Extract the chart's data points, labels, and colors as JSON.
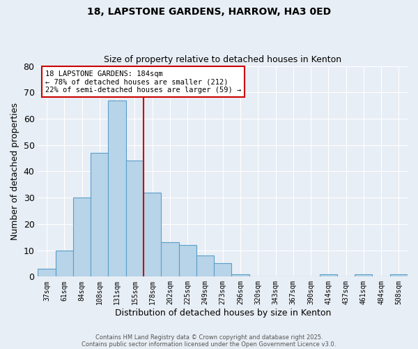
{
  "title": "18, LAPSTONE GARDENS, HARROW, HA3 0ED",
  "subtitle": "Size of property relative to detached houses in Kenton",
  "xlabel": "Distribution of detached houses by size in Kenton",
  "ylabel": "Number of detached properties",
  "bin_labels": [
    "37sqm",
    "61sqm",
    "84sqm",
    "108sqm",
    "131sqm",
    "155sqm",
    "178sqm",
    "202sqm",
    "225sqm",
    "249sqm",
    "273sqm",
    "296sqm",
    "320sqm",
    "343sqm",
    "367sqm",
    "390sqm",
    "414sqm",
    "437sqm",
    "461sqm",
    "484sqm",
    "508sqm"
  ],
  "bar_values": [
    3,
    10,
    30,
    47,
    67,
    44,
    32,
    13,
    12,
    8,
    5,
    1,
    0,
    0,
    0,
    0,
    1,
    0,
    1,
    0,
    1
  ],
  "bar_color": "#b8d4e8",
  "bar_edge_color": "#5a9ec9",
  "vline_x": 6,
  "vline_color": "#cc0000",
  "ylim": [
    0,
    80
  ],
  "yticks": [
    0,
    10,
    20,
    30,
    40,
    50,
    60,
    70,
    80
  ],
  "annotation_title": "18 LAPSTONE GARDENS: 184sqm",
  "annotation_line1": "← 78% of detached houses are smaller (212)",
  "annotation_line2": "22% of semi-detached houses are larger (59) →",
  "annotation_box_color": "#ffffff",
  "annotation_box_edge": "#cc0000",
  "bg_color": "#e8eef5",
  "grid_color": "#ffffff",
  "footer1": "Contains HM Land Registry data © Crown copyright and database right 2025.",
  "footer2": "Contains public sector information licensed under the Open Government Licence v3.0."
}
